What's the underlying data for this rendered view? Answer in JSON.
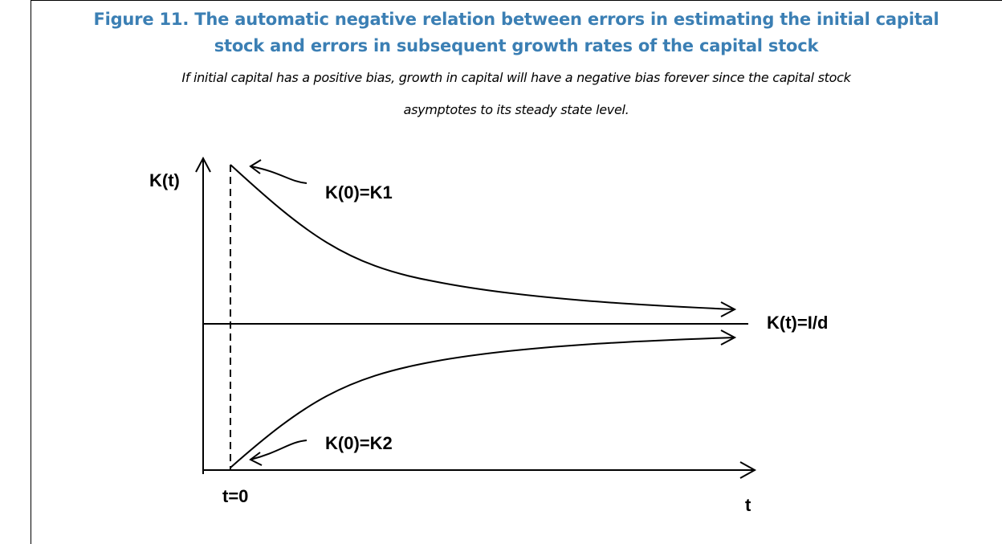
{
  "figure": {
    "title": [
      "Figure 11. The automatic negative relation between errors in estimating the initial capital",
      "stock and errors in subsequent growth rates of the capital stock"
    ],
    "subtitle": [
      "If initial capital has a positive bias, growth in capital will have a negative bias forever since the capital stock",
      "asymptotes to its steady state level."
    ],
    "diagram": {
      "y_axis_label": "K(t)",
      "x_axis_label": "t",
      "origin_label": "t=0",
      "steady_state_label": "K(t)=I/d",
      "upper_curve_label": "K(0)=K1",
      "lower_curve_label": "K(0)=K2"
    }
  }
}
